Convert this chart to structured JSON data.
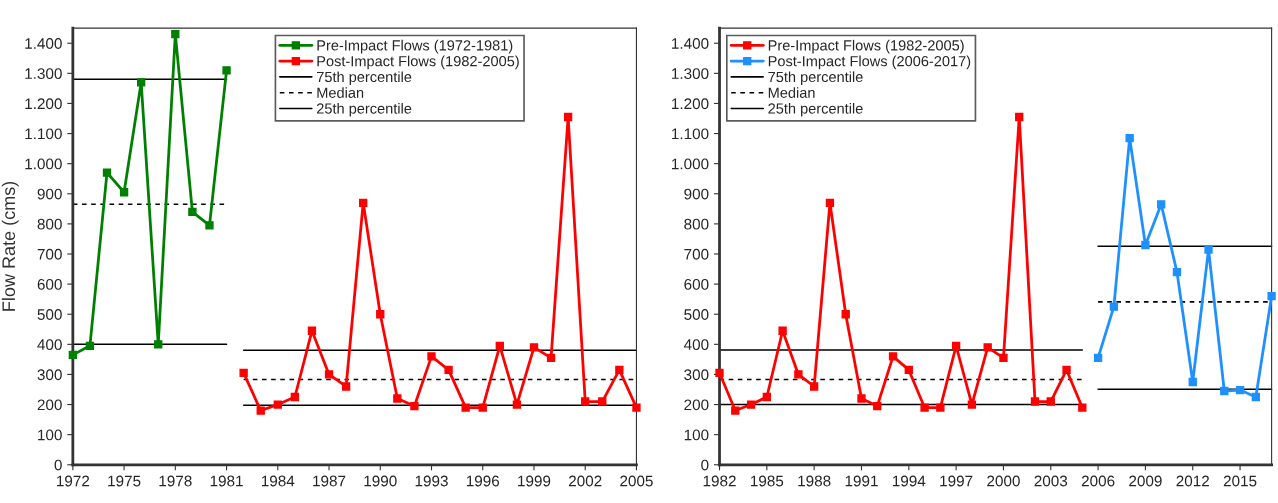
{
  "chart_data": [
    {
      "type": "line",
      "ylabel": "Flow Rate (cms)",
      "xlim": [
        1972,
        2005
      ],
      "xticks": [
        1972,
        1975,
        1978,
        1981,
        1984,
        1987,
        1990,
        1993,
        1996,
        1999,
        2002,
        2005
      ],
      "ylim": [
        0,
        1450
      ],
      "yticks": [
        {
          "value": 0,
          "label": "0"
        },
        {
          "value": 100,
          "label": "100"
        },
        {
          "value": 200,
          "label": "200"
        },
        {
          "value": 300,
          "label": "300"
        },
        {
          "value": 400,
          "label": "400"
        },
        {
          "value": 500,
          "label": "500"
        },
        {
          "value": 600,
          "label": "600"
        },
        {
          "value": 700,
          "label": "700"
        },
        {
          "value": 800,
          "label": "800"
        },
        {
          "value": 900,
          "label": "900"
        },
        {
          "value": 1000,
          "label": "1.000"
        },
        {
          "value": 1100,
          "label": "1.100"
        },
        {
          "value": 1200,
          "label": "1.200"
        },
        {
          "value": 1300,
          "label": "1.300"
        },
        {
          "value": 1400,
          "label": "1.400"
        }
      ],
      "grid": false,
      "legend": "top",
      "marker": "square",
      "series": [
        {
          "name": "Pre-Impact Flows (1972-1981)",
          "color": "#008000",
          "x": [
            1972,
            1973,
            1974,
            1975,
            1976,
            1977,
            1978,
            1979,
            1980,
            1981
          ],
          "values": [
            365,
            395,
            970,
            905,
            1270,
            400,
            1430,
            840,
            795,
            1310
          ]
        },
        {
          "name": "Post-Impact Flows (1982-2005)",
          "color": "#ff0000",
          "x": [
            1982,
            1983,
            1984,
            1985,
            1986,
            1987,
            1988,
            1989,
            1990,
            1991,
            1992,
            1993,
            1994,
            1995,
            1996,
            1997,
            1998,
            1999,
            2000,
            2001,
            2002,
            2003,
            2004,
            2005
          ],
          "values": [
            305,
            180,
            200,
            225,
            445,
            300,
            260,
            870,
            500,
            220,
            195,
            360,
            315,
            190,
            190,
            395,
            200,
            390,
            355,
            1155,
            210,
            210,
            315,
            190
          ]
        },
        {
          "name": "75th percentile",
          "color": "#000000",
          "marker": "none",
          "line_style": "solid",
          "x": [
            1972,
            1981,
            1981.5,
            1982,
            2005
          ],
          "values": [
            1280,
            1280,
            null,
            380,
            380
          ]
        },
        {
          "name": "Median",
          "color": "#000000",
          "marker": "none",
          "line_style": "dashed",
          "x": [
            1972,
            1981,
            1981.5,
            1982,
            2005
          ],
          "values": [
            865,
            865,
            null,
            283,
            283
          ]
        },
        {
          "name": "25th percentile",
          "color": "#000000",
          "marker": "none",
          "line_style": "solid",
          "x": [
            1972,
            1981,
            1981.5,
            1982,
            2005
          ],
          "values": [
            400,
            400,
            null,
            198,
            198
          ]
        }
      ]
    },
    {
      "type": "line",
      "xlim": [
        1982,
        2017
      ],
      "xticks": [
        1982,
        1985,
        1988,
        1991,
        1994,
        1997,
        2000,
        2003,
        2006,
        2009,
        2012,
        2015
      ],
      "ylim": [
        0,
        1450
      ],
      "yticks": [
        0,
        100,
        200,
        300,
        400,
        500,
        600,
        700,
        800,
        900,
        {
          "value": 1000,
          "label": "1.000"
        },
        {
          "value": 1100,
          "label": "1.100"
        },
        {
          "value": 1200,
          "label": "1.200"
        },
        {
          "value": 1300,
          "label": "1.300"
        },
        {
          "value": 1400,
          "label": "1.400"
        }
      ],
      "grid": false,
      "legend": "top left",
      "marker": "square",
      "series": [
        {
          "name": "Pre-Impact Flows (1982-2005)",
          "color": "#ff0000",
          "x": [
            1982,
            1983,
            1984,
            1985,
            1986,
            1987,
            1988,
            1989,
            1990,
            1991,
            1992,
            1993,
            1994,
            1995,
            1996,
            1997,
            1998,
            1999,
            2000,
            2001,
            2002,
            2003,
            2004,
            2005
          ],
          "values": [
            305,
            180,
            200,
            225,
            445,
            300,
            260,
            870,
            500,
            220,
            195,
            360,
            315,
            190,
            190,
            395,
            200,
            390,
            355,
            1155,
            210,
            210,
            315,
            190
          ]
        },
        {
          "name": "Post-Impact Flows (2006-2017)",
          "color": "#1e90ff",
          "x": [
            2006,
            2007,
            2008,
            2009,
            2010,
            2011,
            2012,
            2013,
            2014,
            2015,
            2016,
            2017
          ],
          "values": [
            355,
            525,
            1085,
            730,
            865,
            640,
            275,
            715,
            245,
            248,
            225,
            560
          ]
        },
        {
          "name": "75th percentile",
          "color": "#000000",
          "marker": "none",
          "line_style": "solid",
          "x": [
            1982,
            2005,
            2005.5,
            2006,
            2017
          ],
          "values": [
            381,
            381,
            null,
            726,
            726
          ]
        },
        {
          "name": "Median",
          "color": "#000000",
          "marker": "none",
          "line_style": "dashed",
          "x": [
            1982,
            2005,
            2005.5,
            2006,
            2017
          ],
          "values": [
            283,
            283,
            null,
            541,
            541
          ]
        },
        {
          "name": "25th percentile",
          "color": "#000000",
          "marker": "none",
          "line_style": "solid",
          "x": [
            1982,
            2005,
            2005.5,
            2006,
            2017
          ],
          "values": [
            200,
            200,
            null,
            251,
            251
          ]
        }
      ]
    }
  ]
}
